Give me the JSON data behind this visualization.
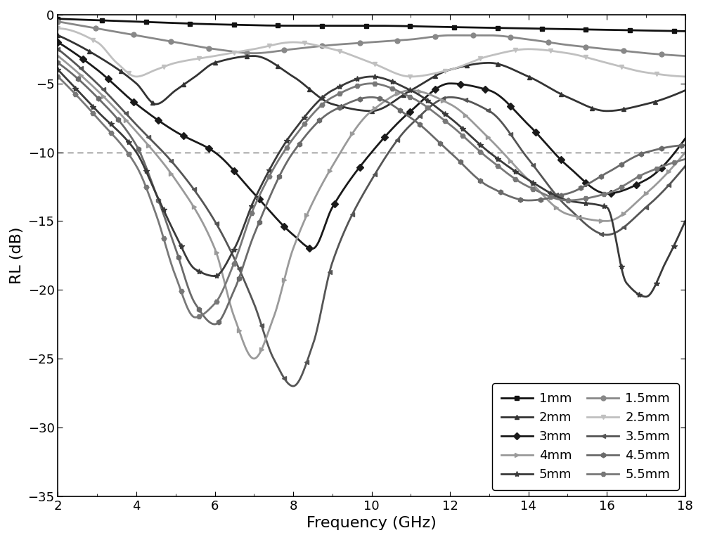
{
  "title": "",
  "xlabel": "Frequency (GHz)",
  "ylabel": "RL (dB)",
  "xlim": [
    2,
    18
  ],
  "ylim": [
    -35,
    0
  ],
  "xticks": [
    2,
    4,
    6,
    8,
    10,
    12,
    14,
    16,
    18
  ],
  "yticks": [
    0,
    -5,
    -10,
    -15,
    -20,
    -25,
    -30,
    -35
  ],
  "dashed_line_y": -10,
  "series": [
    {
      "label": "1mm",
      "color": "#111111",
      "marker": "s",
      "markersize": 5,
      "linewidth": 2.0,
      "thickness_mm": 1.0
    },
    {
      "label": "1.5mm",
      "color": "#888888",
      "marker": "o",
      "markersize": 5,
      "linewidth": 2.0,
      "thickness_mm": 1.5
    },
    {
      "label": "2mm",
      "color": "#333333",
      "marker": "^",
      "markersize": 5,
      "linewidth": 2.0,
      "thickness_mm": 2.0
    },
    {
      "label": "2.5mm",
      "color": "#c0c0c0",
      "marker": "v",
      "markersize": 5,
      "linewidth": 2.0,
      "thickness_mm": 2.5
    },
    {
      "label": "3mm",
      "color": "#1a1a1a",
      "marker": "D",
      "markersize": 5,
      "linewidth": 2.0,
      "thickness_mm": 3.0
    },
    {
      "label": "3.5mm",
      "color": "#555555",
      "marker": "<",
      "markersize": 5,
      "linewidth": 2.0,
      "thickness_mm": 3.5
    },
    {
      "label": "4mm",
      "color": "#9a9a9a",
      "marker": ">",
      "markersize": 5,
      "linewidth": 2.0,
      "thickness_mm": 4.0
    },
    {
      "label": "4.5mm",
      "color": "#6a6a6a",
      "marker": "h",
      "markersize": 5,
      "linewidth": 2.0,
      "thickness_mm": 4.5
    },
    {
      "label": "5mm",
      "color": "#3a3a3a",
      "marker": "*",
      "markersize": 6,
      "linewidth": 2.0,
      "thickness_mm": 5.0
    },
    {
      "label": "5.5mm",
      "color": "#787878",
      "marker": "H",
      "markersize": 5,
      "linewidth": 2.0,
      "thickness_mm": 5.5
    }
  ],
  "thickness_params": {
    "1.0": {
      "eps_r": 20.0,
      "mu_r": 0.95,
      "tan_delta_e": 0.05,
      "tan_delta_m": 0.03
    },
    "1.5": {
      "eps_r": 18.0,
      "mu_r": 1.05,
      "tan_delta_e": 0.08,
      "tan_delta_m": 0.05
    },
    "2.0": {
      "eps_r": 15.0,
      "mu_r": 1.2,
      "tan_delta_e": 0.15,
      "tan_delta_m": 0.1
    },
    "2.5": {
      "eps_r": 14.0,
      "mu_r": 1.3,
      "tan_delta_e": 0.12,
      "tan_delta_m": 0.1
    },
    "3.0": {
      "eps_r": 13.0,
      "mu_r": 1.5,
      "tan_delta_e": 0.18,
      "tan_delta_m": 0.15
    },
    "3.5": {
      "eps_r": 12.0,
      "mu_r": 1.65,
      "tan_delta_e": 0.2,
      "tan_delta_m": 0.18
    },
    "4.0": {
      "eps_r": 11.5,
      "mu_r": 1.8,
      "tan_delta_e": 0.22,
      "tan_delta_m": 0.2
    },
    "4.5": {
      "eps_r": 11.0,
      "mu_r": 1.9,
      "tan_delta_e": 0.25,
      "tan_delta_m": 0.22
    },
    "5.0": {
      "eps_r": 10.5,
      "mu_r": 2.0,
      "tan_delta_e": 0.28,
      "tan_delta_m": 0.25
    },
    "5.5": {
      "eps_r": 10.0,
      "mu_r": 2.1,
      "tan_delta_e": 0.3,
      "tan_delta_m": 0.28
    }
  },
  "background_color": "#ffffff",
  "figsize": [
    10.0,
    7.68
  ],
  "dpi": 100
}
